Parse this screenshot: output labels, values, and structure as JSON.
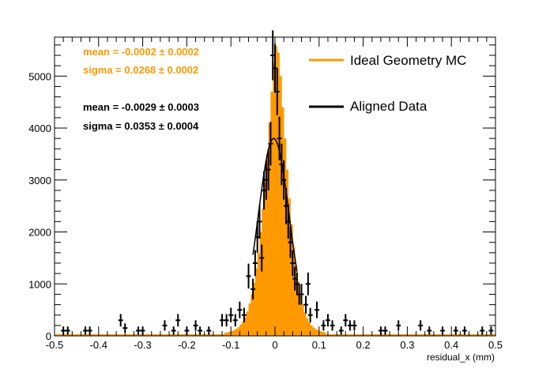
{
  "chart_data": {
    "type": "histogram",
    "xlabel": "residual_x (mm)",
    "ylabel": "",
    "xlim": [
      -0.5,
      0.5
    ],
    "ylim": [
      0,
      5750
    ],
    "grid": false,
    "legend_position": "top-right",
    "x_ticks": [
      "-0.5",
      "-0.4",
      "-0.3",
      "-0.2",
      "-0.1",
      "0",
      "0.1",
      "0.2",
      "0.3",
      "0.4",
      "0.5"
    ],
    "y_ticks": [
      "0",
      "1000",
      "2000",
      "3000",
      "4000",
      "5000"
    ],
    "stats": [
      {
        "label": "mean = -0.0002 ± 0.0002",
        "color": "#ff9900"
      },
      {
        "label": "sigma = 0.0268 ± 0.0002",
        "color": "#ff9900"
      },
      {
        "label": "mean = -0.0029 ± 0.0003",
        "color": "#000000"
      },
      {
        "label": "sigma = 0.0353 ± 0.0004",
        "color": "#000000"
      }
    ],
    "series": [
      {
        "name": "Ideal Geometry MC",
        "kind": "filled-histogram",
        "color": "#ff9900",
        "bin_width": 0.005,
        "bins": [
          [
            -0.115,
            60
          ],
          [
            -0.11,
            70
          ],
          [
            -0.105,
            80
          ],
          [
            -0.1,
            90
          ],
          [
            -0.095,
            110
          ],
          [
            -0.09,
            140
          ],
          [
            -0.085,
            170
          ],
          [
            -0.08,
            220
          ],
          [
            -0.075,
            280
          ],
          [
            -0.07,
            360
          ],
          [
            -0.065,
            470
          ],
          [
            -0.06,
            620
          ],
          [
            -0.055,
            800
          ],
          [
            -0.05,
            1020
          ],
          [
            -0.045,
            1300
          ],
          [
            -0.04,
            1600
          ],
          [
            -0.035,
            2000
          ],
          [
            -0.03,
            2450
          ],
          [
            -0.025,
            2950
          ],
          [
            -0.02,
            3500
          ],
          [
            -0.015,
            4100
          ],
          [
            -0.01,
            4700
          ],
          [
            -0.005,
            5250
          ],
          [
            0.0,
            5580
          ],
          [
            0.005,
            5450
          ],
          [
            0.01,
            5000
          ],
          [
            0.015,
            4400
          ],
          [
            0.02,
            3800
          ],
          [
            0.025,
            3200
          ],
          [
            0.03,
            2650
          ],
          [
            0.035,
            2150
          ],
          [
            0.04,
            1700
          ],
          [
            0.045,
            1350
          ],
          [
            0.05,
            1050
          ],
          [
            0.055,
            800
          ],
          [
            0.06,
            600
          ],
          [
            0.065,
            450
          ],
          [
            0.07,
            340
          ],
          [
            0.075,
            260
          ],
          [
            0.08,
            200
          ],
          [
            0.085,
            160
          ],
          [
            0.09,
            130
          ],
          [
            0.095,
            110
          ],
          [
            0.1,
            90
          ],
          [
            0.105,
            80
          ],
          [
            0.11,
            70
          ]
        ]
      },
      {
        "name": "Aligned Data",
        "kind": "error-bars",
        "color": "#000000",
        "points": [
          [
            -0.48,
            100,
            80
          ],
          [
            -0.47,
            100,
            80
          ],
          [
            -0.43,
            100,
            80
          ],
          [
            -0.42,
            100,
            80
          ],
          [
            -0.35,
            300,
            120
          ],
          [
            -0.34,
            150,
            90
          ],
          [
            -0.31,
            100,
            80
          ],
          [
            -0.3,
            100,
            80
          ],
          [
            -0.25,
            200,
            100
          ],
          [
            -0.23,
            100,
            80
          ],
          [
            -0.22,
            300,
            120
          ],
          [
            -0.2,
            100,
            80
          ],
          [
            -0.18,
            200,
            100
          ],
          [
            -0.17,
            100,
            80
          ],
          [
            -0.15,
            100,
            80
          ],
          [
            -0.12,
            300,
            120
          ],
          [
            -0.11,
            300,
            120
          ],
          [
            -0.1,
            400,
            140
          ],
          [
            -0.09,
            300,
            120
          ],
          [
            -0.08,
            500,
            160
          ],
          [
            -0.07,
            400,
            140
          ],
          [
            -0.06,
            1150,
            240
          ],
          [
            -0.05,
            900,
            200
          ],
          [
            -0.045,
            1400,
            250
          ],
          [
            -0.04,
            1900,
            300
          ],
          [
            -0.035,
            2200,
            330
          ],
          [
            -0.03,
            1500,
            260
          ],
          [
            -0.025,
            2800,
            370
          ],
          [
            -0.02,
            3000,
            380
          ],
          [
            -0.015,
            3200,
            400
          ],
          [
            -0.01,
            3700,
            420
          ],
          [
            -0.005,
            5400,
            480
          ],
          [
            0.0,
            5150,
            470
          ],
          [
            0.005,
            4700,
            450
          ],
          [
            0.01,
            3800,
            420
          ],
          [
            0.015,
            3300,
            400
          ],
          [
            0.02,
            3000,
            380
          ],
          [
            0.025,
            2500,
            350
          ],
          [
            0.03,
            2200,
            330
          ],
          [
            0.035,
            1800,
            300
          ],
          [
            0.04,
            1400,
            250
          ],
          [
            0.045,
            1100,
            230
          ],
          [
            0.05,
            1000,
            220
          ],
          [
            0.055,
            800,
            200
          ],
          [
            0.06,
            800,
            200
          ],
          [
            0.07,
            600,
            170
          ],
          [
            0.075,
            1000,
            220
          ],
          [
            0.08,
            400,
            140
          ],
          [
            0.095,
            500,
            160
          ],
          [
            0.11,
            200,
            100
          ],
          [
            0.12,
            300,
            120
          ],
          [
            0.13,
            200,
            100
          ],
          [
            0.15,
            100,
            80
          ],
          [
            0.16,
            300,
            120
          ],
          [
            0.17,
            200,
            100
          ],
          [
            0.18,
            200,
            100
          ],
          [
            0.24,
            100,
            80
          ],
          [
            0.25,
            100,
            80
          ],
          [
            0.28,
            200,
            100
          ],
          [
            0.33,
            200,
            100
          ],
          [
            0.35,
            100,
            80
          ],
          [
            0.38,
            100,
            80
          ],
          [
            0.41,
            100,
            80
          ],
          [
            0.43,
            100,
            80
          ],
          [
            0.47,
            100,
            80
          ],
          [
            0.49,
            100,
            80
          ]
        ],
        "fit_curve": {
          "mean": -0.0029,
          "sigma": 0.0353,
          "amplitude": 3800,
          "range": [
            -0.05,
            0.05
          ]
        }
      }
    ]
  }
}
